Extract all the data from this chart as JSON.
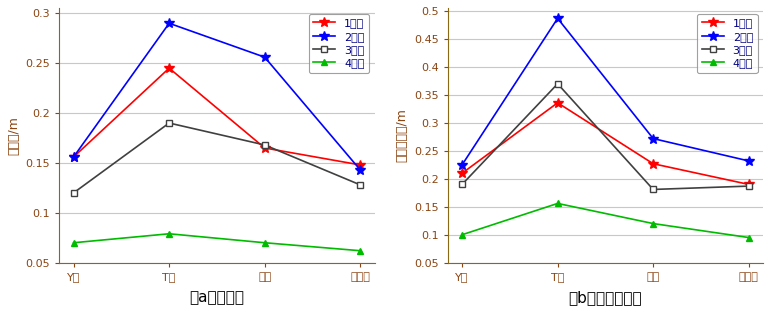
{
  "categories": [
    "Y型",
    "T型",
    "菱型",
    "正方型"
  ],
  "subplot_a": {
    "title": "（a）标准差",
    "ylabel": "标准差/m",
    "ylim": [
      0.05,
      0.305
    ],
    "yticks": [
      0.05,
      0.1,
      0.15,
      0.2,
      0.25,
      0.3
    ],
    "series": [
      {
        "label": "1号点",
        "color": "#FF0000",
        "marker": "*",
        "markersize": 7,
        "values": [
          0.156,
          0.245,
          0.165,
          0.148
        ]
      },
      {
        "label": "2号点",
        "color": "#0000FF",
        "marker": "*",
        "markersize": 7,
        "values": [
          0.156,
          0.29,
          0.256,
          0.143
        ]
      },
      {
        "label": "3号点",
        "color": "#404040",
        "marker": "s",
        "markersize": 5,
        "values": [
          0.12,
          0.19,
          0.168,
          0.128
        ]
      },
      {
        "label": "4号点",
        "color": "#00BB00",
        "marker": "^",
        "markersize": 5,
        "values": [
          0.07,
          0.079,
          0.07,
          0.062
        ]
      }
    ]
  },
  "subplot_b": {
    "title": "（b）均方根误差",
    "ylabel": "均方根误差/m",
    "ylim": [
      0.05,
      0.505
    ],
    "yticks": [
      0.05,
      0.1,
      0.15,
      0.2,
      0.25,
      0.3,
      0.35,
      0.4,
      0.45,
      0.5
    ],
    "series": [
      {
        "label": "1号点",
        "color": "#FF0000",
        "marker": "*",
        "markersize": 7,
        "values": [
          0.21,
          0.336,
          0.227,
          0.19
        ]
      },
      {
        "label": "2号点",
        "color": "#0000FF",
        "marker": "*",
        "markersize": 7,
        "values": [
          0.225,
          0.487,
          0.272,
          0.232
        ]
      },
      {
        "label": "3号点",
        "color": "#404040",
        "marker": "s",
        "markersize": 5,
        "values": [
          0.19,
          0.37,
          0.181,
          0.187
        ]
      },
      {
        "label": "4号点",
        "color": "#00BB00",
        "marker": "^",
        "markersize": 5,
        "values": [
          0.1,
          0.156,
          0.12,
          0.095
        ]
      }
    ]
  },
  "background_color": "#FFFFFF",
  "grid_color": "#C8C8C8",
  "linewidth": 1.2,
  "title_fontsize": 11,
  "label_fontsize": 9,
  "tick_fontsize": 8,
  "legend_fontsize": 8,
  "spine_color": "#8B6914",
  "tick_color": "#8B4513",
  "ylabel_color": "#8B4513"
}
